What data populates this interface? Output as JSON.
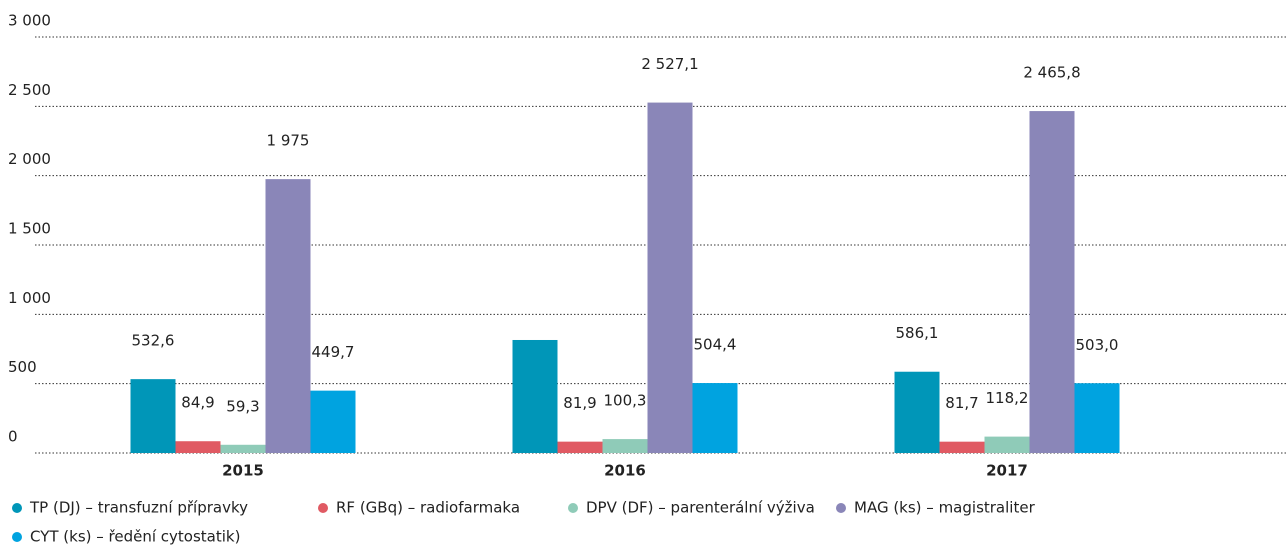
{
  "chart_data": {
    "type": "bar",
    "categories": [
      "2015",
      "2016",
      "2017"
    ],
    "ylim": [
      0,
      3000
    ],
    "yticks": [
      0,
      500,
      {
        "value": 1000,
        "label": "1 000"
      },
      {
        "value": 1500,
        "label": "1 500"
      },
      {
        "value": 2000,
        "label": "2 000"
      },
      {
        "value": 2500,
        "label": "2 500"
      },
      {
        "value": 3000,
        "label": "3 000"
      }
    ],
    "grid": true,
    "legend": "bottom",
    "series": [
      {
        "name": "TP (DJ) – transfuzní přípravky",
        "color": "#0096b8",
        "values": [
          532.6,
          815,
          586.1
        ],
        "value_labels": [
          "532,6",
          null,
          "586,1"
        ]
      },
      {
        "name": "RF (GBq) – radiofarmaka",
        "color": "#e05a63",
        "values": [
          84.9,
          81.9,
          81.7
        ],
        "value_labels": [
          "84,9",
          "81,9",
          "81,7"
        ]
      },
      {
        "name": "DPV (DF) – parenterální výživa",
        "color": "#8fcbb8",
        "values": [
          59.3,
          100.3,
          118.2
        ],
        "value_labels": [
          "59,3",
          "100,3",
          "118,2"
        ]
      },
      {
        "name": "MAG (ks) – magistraliter",
        "color": "#8a86b8",
        "values": [
          1975,
          2527.1,
          2465.8
        ],
        "value_labels": [
          "1 975",
          "2 527,1",
          "2 465,8"
        ]
      },
      {
        "name": "CYT (ks) – ředění cytostatik)",
        "color": "#00a3e0",
        "values": [
          449.7,
          504.4,
          503.0
        ],
        "value_labels": [
          "449,7",
          "504,4",
          "503,0"
        ]
      }
    ]
  }
}
